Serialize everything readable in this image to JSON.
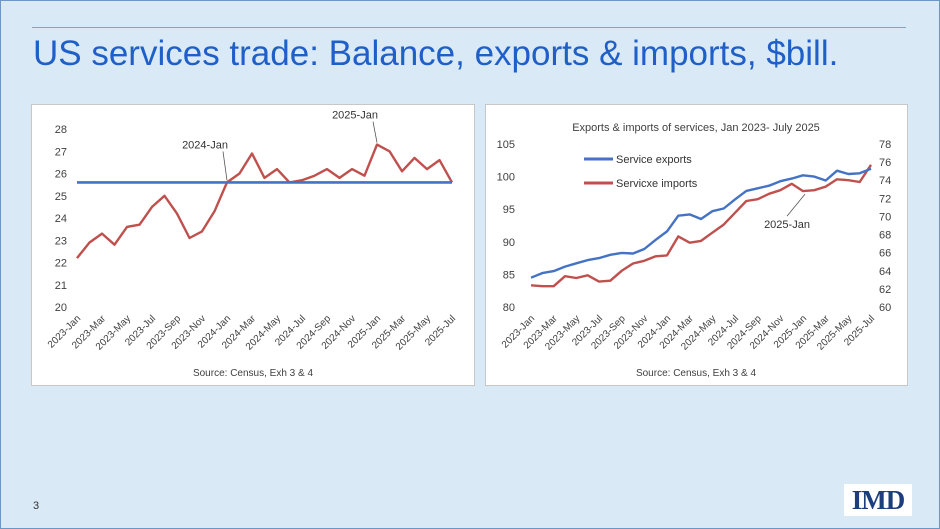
{
  "slide": {
    "title": "US services trade: Balance, exports & imports, $bill.",
    "page_number": "3",
    "logo_text": "IMD"
  },
  "colors": {
    "background": "#d9e9f6",
    "title": "#1f5fc8",
    "blue_series": "#4472c4",
    "red_series": "#c0504d"
  },
  "chart_data": [
    {
      "type": "line",
      "title": "",
      "source": "Source: Census, Exh 3 & 4",
      "categories": [
        "2023-Jan",
        "2023-Feb",
        "2023-Mar",
        "2023-Apr",
        "2023-May",
        "2023-Jun",
        "2023-Jul",
        "2023-Aug",
        "2023-Sep",
        "2023-Oct",
        "2023-Nov",
        "2023-Dec",
        "2024-Jan",
        "2024-Feb",
        "2024-Mar",
        "2024-Apr",
        "2024-May",
        "2024-Jun",
        "2024-Jul",
        "2024-Aug",
        "2024-Sep",
        "2024-Oct",
        "2024-Nov",
        "2024-Dec",
        "2025-Jan",
        "2025-Feb",
        "2025-Mar",
        "2025-Apr",
        "2025-May",
        "2025-Jun",
        "2025-Jul"
      ],
      "x_tick_labels": [
        "2023-Jan",
        "2023-Mar",
        "2023-May",
        "2023-Jul",
        "2023-Sep",
        "2023-Nov",
        "2024-Jan",
        "2024-Mar",
        "2024-May",
        "2024-Jul",
        "2024-Sep",
        "2024-Nov",
        "2025-Jan",
        "2025-Mar",
        "2025-May",
        "2025-Jul"
      ],
      "ylim": [
        20,
        28
      ],
      "y_ticks": [
        20,
        21,
        22,
        23,
        24,
        25,
        26,
        27,
        28
      ],
      "grid": false,
      "series": [
        {
          "name": "",
          "color": "#c0504d",
          "values": [
            22.2,
            22.9,
            23.3,
            22.8,
            23.6,
            23.7,
            24.5,
            25.0,
            24.2,
            23.1,
            23.4,
            24.3,
            25.6,
            26.0,
            26.9,
            25.8,
            26.2,
            25.6,
            25.7,
            25.9,
            26.2,
            25.8,
            26.2,
            25.9,
            27.3,
            27.0,
            26.1,
            26.7,
            26.2,
            26.6,
            25.6
          ]
        },
        {
          "name": "",
          "color": "#4472c4",
          "values": [
            25.6,
            25.6,
            25.6,
            25.6,
            25.6,
            25.6,
            25.6,
            25.6,
            25.6,
            25.6,
            25.6,
            25.6,
            25.6,
            25.6,
            25.6,
            25.6,
            25.6,
            25.6,
            25.6,
            25.6,
            25.6,
            25.6,
            25.6,
            25.6,
            25.6,
            25.6,
            25.6,
            25.6,
            25.6,
            25.6,
            25.6
          ]
        }
      ],
      "annotations": [
        {
          "text": "2024-Jan",
          "category": "2024-Jan",
          "y": 25.6
        },
        {
          "text": "2025-Jan",
          "category": "2025-Jan",
          "y": 27.3
        }
      ]
    },
    {
      "type": "line",
      "title": "Exports & imports of services, Jan 2023- July 2025",
      "source": "Source: Census, Exh 3 & 4",
      "categories": [
        "2023-Jan",
        "2023-Feb",
        "2023-Mar",
        "2023-Apr",
        "2023-May",
        "2023-Jun",
        "2023-Jul",
        "2023-Aug",
        "2023-Sep",
        "2023-Oct",
        "2023-Nov",
        "2023-Dec",
        "2024-Jan",
        "2024-Feb",
        "2024-Mar",
        "2024-Apr",
        "2024-May",
        "2024-Jun",
        "2024-Jul",
        "2024-Aug",
        "2024-Sep",
        "2024-Oct",
        "2024-Nov",
        "2024-Dec",
        "2025-Jan",
        "2025-Feb",
        "2025-Mar",
        "2025-Apr",
        "2025-May",
        "2025-Jun",
        "2025-Jul"
      ],
      "x_tick_labels": [
        "2023-Jan",
        "2023-Mar",
        "2023-May",
        "2023-Jul",
        "2023-Sep",
        "2023-Nov",
        "2024-Jan",
        "2024-Mar",
        "2024-May",
        "2024-Jul",
        "2024-Sep",
        "2024-Nov",
        "2025-Jan",
        "2025-Mar",
        "2025-May",
        "2025-Jul"
      ],
      "ylim": [
        80,
        105
      ],
      "y_ticks": [
        80,
        85,
        90,
        95,
        100,
        105
      ],
      "y2lim": [
        60,
        78
      ],
      "y2_ticks": [
        60,
        62,
        64,
        66,
        68,
        70,
        72,
        74,
        76,
        78
      ],
      "grid": false,
      "legend_position": "top-left",
      "series": [
        {
          "name": "Service exports",
          "axis": "left",
          "color": "#4472c4",
          "values": [
            84.5,
            85.2,
            85.5,
            86.2,
            86.7,
            87.2,
            87.5,
            88.0,
            88.3,
            88.2,
            88.9,
            90.3,
            91.6,
            94.0,
            94.2,
            93.5,
            94.7,
            95.1,
            96.5,
            97.8,
            98.2,
            98.6,
            99.3,
            99.7,
            100.2,
            100.0,
            99.4,
            100.9,
            100.4,
            100.5,
            101.2
          ]
        },
        {
          "name": "Servicxe imports",
          "axis": "right",
          "color": "#c0504d",
          "values": [
            62.4,
            62.3,
            62.3,
            63.4,
            63.2,
            63.5,
            62.8,
            62.9,
            64.0,
            64.8,
            65.1,
            65.6,
            65.7,
            67.8,
            67.1,
            67.3,
            68.2,
            69.1,
            70.4,
            71.7,
            71.9,
            72.5,
            72.9,
            73.6,
            72.8,
            72.9,
            73.3,
            74.1,
            74.0,
            73.8,
            75.7
          ]
        }
      ],
      "annotations": [
        {
          "text": "2025-Jan",
          "category": "2025-Jan"
        }
      ]
    }
  ]
}
